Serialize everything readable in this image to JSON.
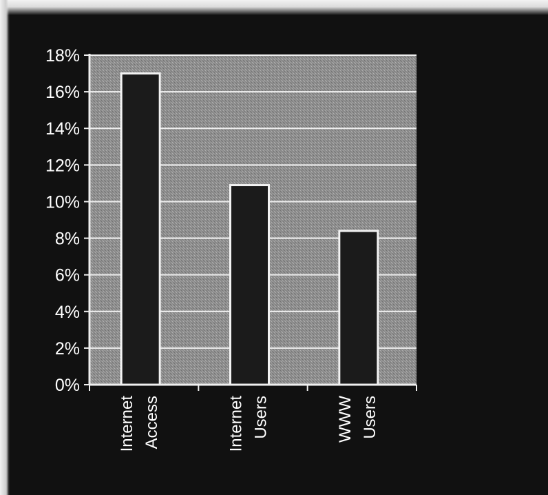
{
  "chart_data": {
    "type": "bar",
    "categories": [
      {
        "line1": "Internet",
        "line2": "Access"
      },
      {
        "line1": "Internet",
        "line2": "Users"
      },
      {
        "line1": "WWW",
        "line2": "Users"
      }
    ],
    "values": [
      17.0,
      10.9,
      8.4
    ],
    "unit": "%",
    "ylim": [
      0,
      18
    ],
    "yticks": [
      "0%",
      "2%",
      "4%",
      "6%",
      "8%",
      "10%",
      "12%",
      "14%",
      "16%",
      "18%"
    ],
    "grid": true,
    "title": "",
    "xlabel": "",
    "ylabel": "",
    "colors": {
      "background": "#111111",
      "plot_area": "#8e8e8e",
      "bar_fill": "#1b1b1b",
      "bar_stroke": "#f2f2f2",
      "gridline": "#f0f0f0",
      "text": "#ffffff"
    }
  }
}
